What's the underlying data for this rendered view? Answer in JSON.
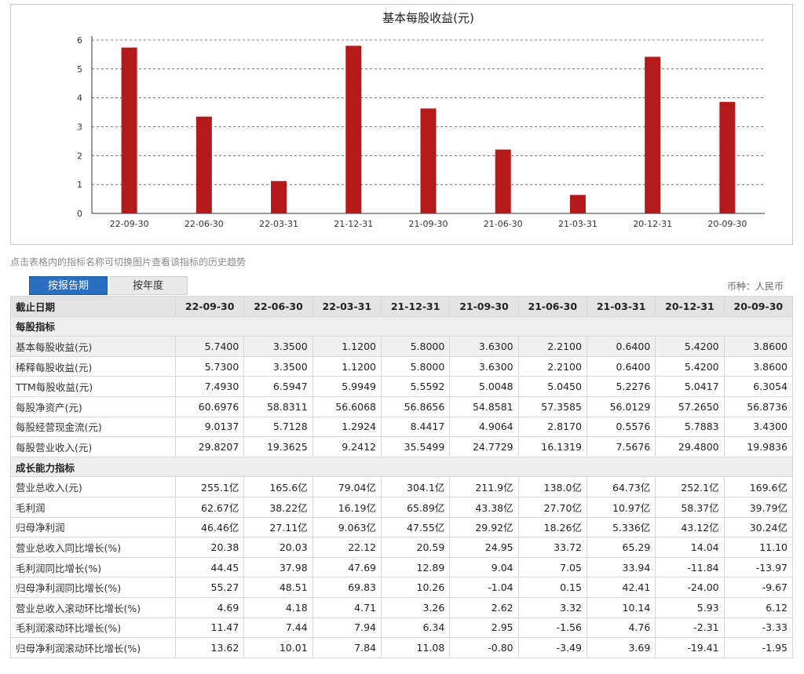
{
  "chart_data": {
    "type": "bar",
    "title": "基本每股收益(元)",
    "categories": [
      "22-09-30",
      "22-06-30",
      "22-03-31",
      "21-12-31",
      "21-09-30",
      "21-06-30",
      "21-03-31",
      "20-12-31",
      "20-09-30"
    ],
    "values": [
      5.74,
      3.35,
      1.12,
      5.8,
      3.63,
      2.21,
      0.64,
      5.42,
      3.86
    ],
    "ylim": [
      0,
      6
    ],
    "yticks": [
      "0",
      "1",
      "2",
      "3",
      "4",
      "5",
      "6"
    ],
    "grid": true,
    "bar_color": "#b51a1a"
  },
  "hint_text": "点击表格内的指标名称可切换图片查看该指标的历史趋势",
  "tabs": [
    {
      "label": "按报告期",
      "active": true
    },
    {
      "label": "按年度",
      "active": false
    }
  ],
  "currency_label": "币种：人民币",
  "table": {
    "header": {
      "label": "截止日期",
      "dates": [
        "22-09-30",
        "22-06-30",
        "22-03-31",
        "21-12-31",
        "21-09-30",
        "21-06-30",
        "21-03-31",
        "20-12-31",
        "20-09-30"
      ]
    },
    "rows": [
      {
        "type": "section",
        "name": "每股指标"
      },
      {
        "type": "data",
        "highlight": true,
        "name": "基本每股收益(元)",
        "values": [
          "5.7400",
          "3.3500",
          "1.1200",
          "5.8000",
          "3.6300",
          "2.2100",
          "0.6400",
          "5.4200",
          "3.8600"
        ]
      },
      {
        "type": "data",
        "name": "稀释每股收益(元)",
        "values": [
          "5.7300",
          "3.3500",
          "1.1200",
          "5.8000",
          "3.6300",
          "2.2100",
          "0.6400",
          "5.4200",
          "3.8600"
        ]
      },
      {
        "type": "data",
        "name": "TTM每股收益(元)",
        "values": [
          "7.4930",
          "6.5947",
          "5.9949",
          "5.5592",
          "5.0048",
          "5.0450",
          "5.2276",
          "5.0417",
          "6.3054"
        ]
      },
      {
        "type": "data",
        "name": "每股净资产(元)",
        "values": [
          "60.6976",
          "58.8311",
          "56.6068",
          "56.8656",
          "54.8581",
          "57.3585",
          "56.0129",
          "57.2650",
          "56.8736"
        ]
      },
      {
        "type": "data",
        "name": "每股经营现金流(元)",
        "values": [
          "9.0137",
          "5.7128",
          "1.2924",
          "8.4417",
          "4.9064",
          "2.8170",
          "0.5576",
          "5.7883",
          "3.4300"
        ]
      },
      {
        "type": "data",
        "name": "每股营业收入(元)",
        "values": [
          "29.8207",
          "19.3625",
          "9.2412",
          "35.5499",
          "24.7729",
          "16.1319",
          "7.5676",
          "29.4800",
          "19.9836"
        ]
      },
      {
        "type": "section",
        "name": "成长能力指标"
      },
      {
        "type": "data",
        "name": "营业总收入(元)",
        "values": [
          "255.1亿",
          "165.6亿",
          "79.04亿",
          "304.1亿",
          "211.9亿",
          "138.0亿",
          "64.73亿",
          "252.1亿",
          "169.6亿"
        ]
      },
      {
        "type": "data",
        "name": "毛利润",
        "values": [
          "62.67亿",
          "38.22亿",
          "16.19亿",
          "65.89亿",
          "43.38亿",
          "27.70亿",
          "10.97亿",
          "58.37亿",
          "39.79亿"
        ]
      },
      {
        "type": "data",
        "name": "归母净利润",
        "values": [
          "46.46亿",
          "27.11亿",
          "9.063亿",
          "47.55亿",
          "29.92亿",
          "18.26亿",
          "5.336亿",
          "43.12亿",
          "30.24亿"
        ]
      },
      {
        "type": "data",
        "name": "营业总收入同比增长(%)",
        "values": [
          "20.38",
          "20.03",
          "22.12",
          "20.59",
          "24.95",
          "33.72",
          "65.29",
          "14.04",
          "11.10"
        ]
      },
      {
        "type": "data",
        "name": "毛利润同比增长(%)",
        "values": [
          "44.45",
          "37.98",
          "47.69",
          "12.89",
          "9.04",
          "7.05",
          "33.94",
          "-11.84",
          "-13.97"
        ]
      },
      {
        "type": "data",
        "name": "归母净利润同比增长(%)",
        "values": [
          "55.27",
          "48.51",
          "69.83",
          "10.26",
          "-1.04",
          "0.15",
          "42.41",
          "-24.00",
          "-9.67"
        ]
      },
      {
        "type": "data",
        "name": "营业总收入滚动环比增长(%)",
        "values": [
          "4.69",
          "4.18",
          "4.71",
          "3.26",
          "2.62",
          "3.32",
          "10.14",
          "5.93",
          "6.12"
        ]
      },
      {
        "type": "data",
        "name": "毛利润滚动环比增长(%)",
        "values": [
          "11.47",
          "7.44",
          "7.94",
          "6.34",
          "2.95",
          "-1.56",
          "4.76",
          "-2.31",
          "-3.33"
        ]
      },
      {
        "type": "data",
        "name": "归母净利润滚动环比增长(%)",
        "values": [
          "13.62",
          "10.01",
          "7.84",
          "11.08",
          "-0.80",
          "-3.49",
          "3.69",
          "-19.41",
          "-1.95"
        ]
      }
    ]
  }
}
